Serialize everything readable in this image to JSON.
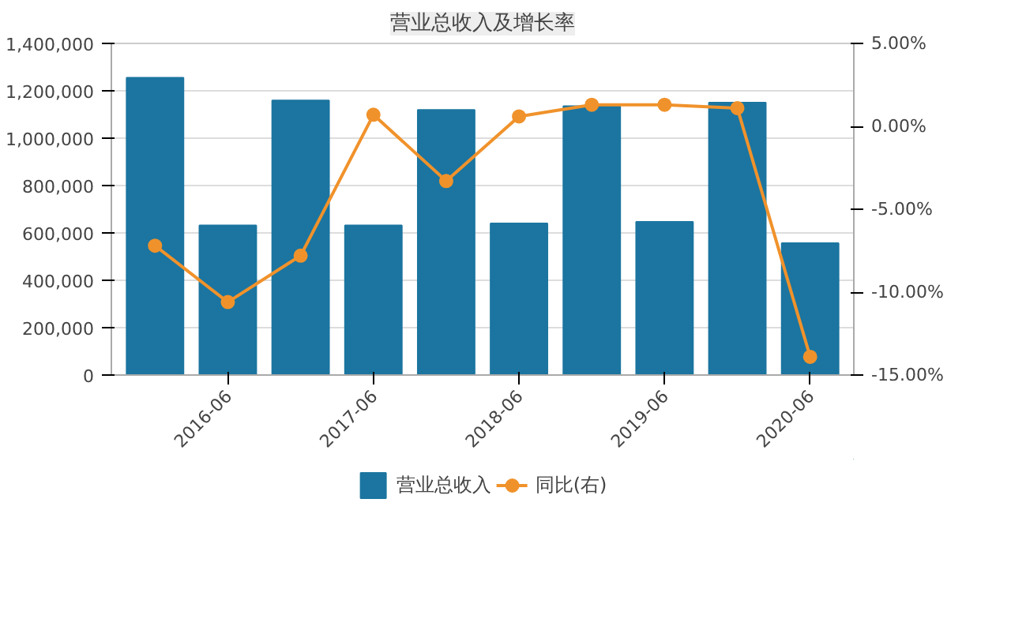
{
  "chart_data": {
    "type": "bar",
    "title": "营业总收入及增长率",
    "categories": [
      null,
      "2016-06",
      null,
      "2017-06",
      null,
      "2018-06",
      null,
      "2019-06",
      null,
      "2020-06"
    ],
    "series": [
      {
        "name": "营业总收入",
        "color": "#1b75a0",
        "values": [
          1255000,
          632000,
          1159000,
          632000,
          1119000,
          640000,
          1135000,
          647000,
          1150000,
          557000
        ]
      },
      {
        "name": "同比(右)",
        "type": "line",
        "axis": "y2",
        "color": "#f0922b",
        "marker": "circle",
        "values": [
          -7.2,
          -10.6,
          -7.8,
          0.7,
          -3.3,
          0.6,
          1.3,
          1.3,
          1.1,
          -13.9
        ]
      }
    ],
    "ylim": [
      0,
      1400000
    ],
    "yticks": [
      0,
      {
        "value": 200000,
        "label": "200,000"
      },
      {
        "value": 400000,
        "label": "400,000"
      },
      {
        "value": 600000,
        "label": "600,000"
      },
      {
        "value": 800000,
        "label": "800,000"
      },
      {
        "value": 1000000,
        "label": "1,000,000"
      },
      {
        "value": 1200000,
        "label": "1,200,000"
      },
      {
        "value": 1400000,
        "label": "1,400,000"
      }
    ],
    "y2lim": [
      -15,
      5
    ],
    "y2ticks": [
      {
        "value": -15,
        "label": "-15.00%"
      },
      {
        "value": -10,
        "label": "-10.00%"
      },
      {
        "value": -5,
        "label": "-5.00%"
      },
      {
        "value": 0,
        "label": "0.00%"
      },
      {
        "value": 5,
        "label": "5.00%"
      }
    ],
    "grid": "y",
    "legend": "bottom"
  }
}
